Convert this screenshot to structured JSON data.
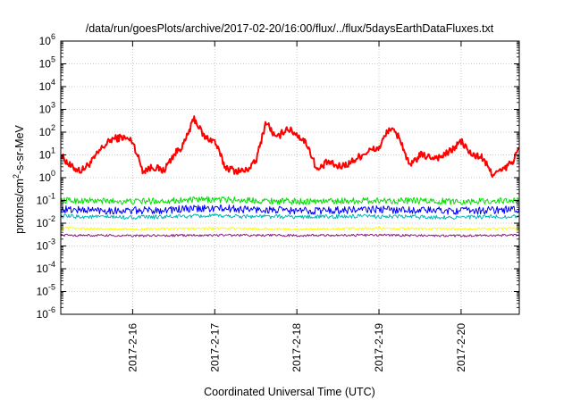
{
  "chart_data": {
    "type": "line",
    "title": "/data/run/goesPlots/archive/2017-02-20/16:00/flux/../flux/5daysEarthDataFluxes.txt",
    "xlabel": "Coordinated Universal Time (UTC)",
    "ylabel": "protons/cm2-s-sr-MeV",
    "ylabel_parts": {
      "base": "protons/cm",
      "sup": "2",
      "rest": "-s-sr-MeV"
    },
    "y_scale": "log",
    "ylim": [
      1e-06,
      1000000.0
    ],
    "y_ticks": [
      {
        "base": "10",
        "exp": "-6"
      },
      {
        "base": "10",
        "exp": "-5"
      },
      {
        "base": "10",
        "exp": "-4"
      },
      {
        "base": "10",
        "exp": "-3"
      },
      {
        "base": "10",
        "exp": "-2"
      },
      {
        "base": "10",
        "exp": "-1"
      },
      {
        "base": "10",
        "exp": "0"
      },
      {
        "base": "10",
        "exp": "1"
      },
      {
        "base": "10",
        "exp": "2"
      },
      {
        "base": "10",
        "exp": "3"
      },
      {
        "base": "10",
        "exp": "4"
      },
      {
        "base": "10",
        "exp": "5"
      },
      {
        "base": "10",
        "exp": "6"
      }
    ],
    "xlim": [
      "2017-02-15 03:00",
      "2017-02-20 17:00"
    ],
    "x_ticks": [
      "2017-2-16",
      "2017-2-17",
      "2017-2-18",
      "2017-2-19",
      "2017-2-20"
    ],
    "grid": true,
    "legend": "none",
    "series": [
      {
        "color": "#ff0000",
        "x": [
          "2017-02-15 03:00",
          "2017-02-15 06:00",
          "2017-02-15 09:00",
          "2017-02-15 12:00",
          "2017-02-15 15:00",
          "2017-02-15 18:00",
          "2017-02-15 21:00",
          "2017-02-16 00:00",
          "2017-02-16 03:00",
          "2017-02-16 06:00",
          "2017-02-16 09:00",
          "2017-02-16 12:00",
          "2017-02-16 15:00",
          "2017-02-16 18:00",
          "2017-02-16 21:00",
          "2017-02-17 00:00",
          "2017-02-17 03:00",
          "2017-02-17 06:00",
          "2017-02-17 09:00",
          "2017-02-17 12:00",
          "2017-02-17 15:00",
          "2017-02-17 18:00",
          "2017-02-17 21:00",
          "2017-02-18 00:00",
          "2017-02-18 03:00",
          "2017-02-18 06:00",
          "2017-02-18 09:00",
          "2017-02-18 12:00",
          "2017-02-18 15:00",
          "2017-02-18 18:00",
          "2017-02-18 21:00",
          "2017-02-19 00:00",
          "2017-02-19 03:00",
          "2017-02-19 06:00",
          "2017-02-19 09:00",
          "2017-02-19 12:00",
          "2017-02-19 15:00",
          "2017-02-19 18:00",
          "2017-02-19 21:00",
          "2017-02-20 00:00",
          "2017-02-20 03:00",
          "2017-02-20 06:00",
          "2017-02-20 09:00",
          "2017-02-20 12:00",
          "2017-02-20 15:00",
          "2017-02-20 17:00"
        ],
        "values": [
          10,
          3,
          2,
          5,
          20,
          50,
          60,
          40,
          2,
          3,
          2,
          10,
          30,
          400,
          60,
          40,
          3,
          2,
          2,
          5,
          300,
          50,
          150,
          80,
          30,
          2,
          5,
          3,
          4,
          8,
          15,
          20,
          150,
          60,
          3,
          10,
          8,
          8,
          15,
          40,
          10,
          8,
          1.5,
          2,
          5,
          20
        ]
      },
      {
        "color": "#00e000",
        "x": [
          "2017-02-15 03:00",
          "2017-02-16 00:00",
          "2017-02-17 00:00",
          "2017-02-18 00:00",
          "2017-02-19 00:00",
          "2017-02-20 00:00",
          "2017-02-20 17:00"
        ],
        "values": [
          0.1,
          0.09,
          0.11,
          0.09,
          0.1,
          0.09,
          0.1
        ]
      },
      {
        "color": "#0000ff",
        "x": [
          "2017-02-15 03:00",
          "2017-02-16 00:00",
          "2017-02-17 00:00",
          "2017-02-18 00:00",
          "2017-02-19 00:00",
          "2017-02-20 00:00",
          "2017-02-20 17:00"
        ],
        "values": [
          0.04,
          0.035,
          0.045,
          0.035,
          0.04,
          0.035,
          0.04
        ]
      },
      {
        "color": "#00b8b8",
        "x": [
          "2017-02-15 03:00",
          "2017-02-16 00:00",
          "2017-02-17 00:00",
          "2017-02-18 00:00",
          "2017-02-19 00:00",
          "2017-02-20 00:00",
          "2017-02-20 17:00"
        ],
        "values": [
          0.02,
          0.018,
          0.021,
          0.019,
          0.02,
          0.018,
          0.02
        ]
      },
      {
        "color": "#ffff00",
        "x": [
          "2017-02-15 03:00",
          "2017-02-16 00:00",
          "2017-02-17 00:00",
          "2017-02-18 00:00",
          "2017-02-19 00:00",
          "2017-02-20 00:00",
          "2017-02-20 17:00"
        ],
        "values": [
          0.006,
          0.0055,
          0.006,
          0.0055,
          0.006,
          0.0055,
          0.006
        ]
      },
      {
        "color": "#8b1a7a",
        "x": [
          "2017-02-15 03:00",
          "2017-02-16 00:00",
          "2017-02-17 00:00",
          "2017-02-18 00:00",
          "2017-02-19 00:00",
          "2017-02-20 00:00",
          "2017-02-20 17:00"
        ],
        "values": [
          0.003,
          0.0028,
          0.003,
          0.0029,
          0.003,
          0.0028,
          0.003
        ]
      }
    ]
  }
}
